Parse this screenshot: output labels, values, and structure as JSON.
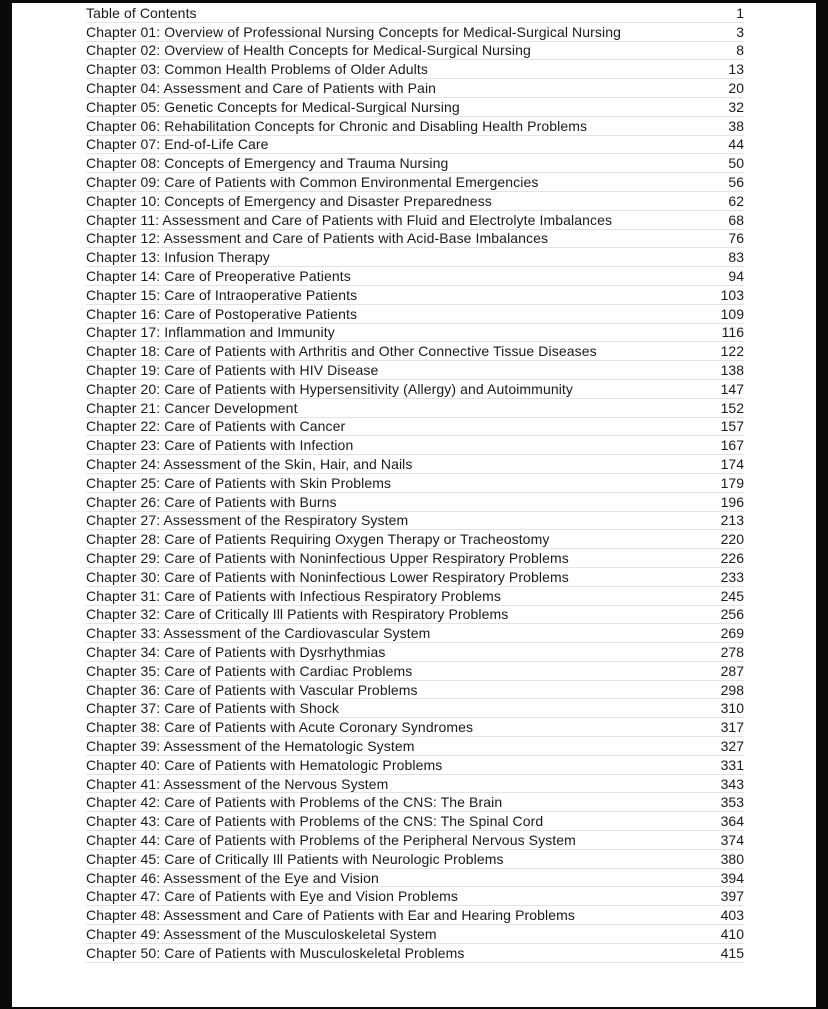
{
  "page": {
    "frame_color": "#0a0a0a",
    "paper_color": "#ffffff",
    "text_color": "#1a1a1a",
    "separator_color": "#e3e3e3"
  },
  "toc": {
    "entries": [
      {
        "label": "Table of Contents",
        "page": "1"
      },
      {
        "label": "Chapter 01: Overview of Professional Nursing Concepts for Medical-Surgical Nursing",
        "page": "3"
      },
      {
        "label": "Chapter 02: Overview of Health Concepts for Medical-Surgical Nursing",
        "page": "8"
      },
      {
        "label": "Chapter 03: Common Health Problems of Older Adults",
        "page": "13"
      },
      {
        "label": "Chapter 04: Assessment and Care of Patients with Pain",
        "page": "20"
      },
      {
        "label": "Chapter 05: Genetic Concepts for Medical-Surgical Nursing",
        "page": "32"
      },
      {
        "label": "Chapter 06: Rehabilitation Concepts for Chronic and Disabling Health Problems",
        "page": "38"
      },
      {
        "label": "Chapter 07: End-of-Life Care",
        "page": "44"
      },
      {
        "label": "Chapter 08: Concepts of Emergency and Trauma Nursing",
        "page": "50"
      },
      {
        "label": "Chapter 09: Care of Patients with Common Environmental Emergencies",
        "page": "56"
      },
      {
        "label": "Chapter 10: Concepts of Emergency and Disaster Preparedness",
        "page": "62"
      },
      {
        "label": "Chapter 11: Assessment and Care of Patients with Fluid and Electrolyte Imbalances",
        "page": "68"
      },
      {
        "label": "Chapter 12: Assessment and Care of Patients with Acid-Base Imbalances",
        "page": "76"
      },
      {
        "label": "Chapter 13: Infusion Therapy",
        "page": "83"
      },
      {
        "label": "Chapter 14: Care of Preoperative Patients",
        "page": "94"
      },
      {
        "label": "Chapter 15: Care of Intraoperative Patients",
        "page": "103"
      },
      {
        "label": "Chapter 16: Care of Postoperative Patients",
        "page": "109"
      },
      {
        "label": "Chapter 17: Inflammation and Immunity",
        "page": "116"
      },
      {
        "label": "Chapter 18: Care of Patients with Arthritis and Other Connective Tissue Diseases",
        "page": "122"
      },
      {
        "label": "Chapter 19: Care of Patients with HIV Disease",
        "page": "138"
      },
      {
        "label": "Chapter 20: Care of Patients with Hypersensitivity (Allergy) and Autoimmunity",
        "page": "147"
      },
      {
        "label": "Chapter 21: Cancer Development",
        "page": "152"
      },
      {
        "label": "Chapter 22: Care of Patients with Cancer",
        "page": "157"
      },
      {
        "label": "Chapter 23: Care of Patients with Infection",
        "page": "167"
      },
      {
        "label": "Chapter 24: Assessment of the Skin, Hair, and Nails",
        "page": "174"
      },
      {
        "label": "Chapter 25: Care of Patients with Skin Problems",
        "page": "179"
      },
      {
        "label": "Chapter 26: Care of Patients with Burns",
        "page": "196"
      },
      {
        "label": "Chapter 27: Assessment of the Respiratory System",
        "page": "213"
      },
      {
        "label": "Chapter 28: Care of Patients Requiring Oxygen Therapy or Tracheostomy",
        "page": "220"
      },
      {
        "label": "Chapter 29: Care of Patients with Noninfectious Upper Respiratory Problems",
        "page": "226"
      },
      {
        "label": "Chapter 30: Care of Patients with Noninfectious Lower Respiratory Problems",
        "page": "233"
      },
      {
        "label": "Chapter 31: Care of Patients with Infectious Respiratory Problems",
        "page": "245"
      },
      {
        "label": "Chapter 32: Care of Critically Ill Patients with Respiratory Problems",
        "page": "256"
      },
      {
        "label": "Chapter 33: Assessment of the Cardiovascular System",
        "page": "269"
      },
      {
        "label": "Chapter 34: Care of Patients with Dysrhythmias",
        "page": "278"
      },
      {
        "label": "Chapter 35: Care of Patients with Cardiac Problems",
        "page": "287"
      },
      {
        "label": "Chapter 36: Care of Patients with Vascular Problems",
        "page": "298"
      },
      {
        "label": "Chapter 37: Care of Patients with Shock",
        "page": "310"
      },
      {
        "label": "Chapter 38: Care of Patients with Acute Coronary Syndromes",
        "page": "317"
      },
      {
        "label": "Chapter 39: Assessment of the Hematologic System",
        "page": "327"
      },
      {
        "label": "Chapter 40: Care of Patients with Hematologic Problems",
        "page": "331"
      },
      {
        "label": "Chapter 41: Assessment of the Nervous System",
        "page": "343"
      },
      {
        "label": "Chapter 42: Care of Patients with Problems of the CNS: The Brain",
        "page": "353"
      },
      {
        "label": "Chapter 43: Care of Patients with Problems of the CNS: The Spinal Cord",
        "page": "364"
      },
      {
        "label": "Chapter 44: Care of Patients with Problems of the Peripheral Nervous System",
        "page": "374"
      },
      {
        "label": "Chapter 45: Care of Critically Ill Patients with Neurologic Problems",
        "page": "380"
      },
      {
        "label": "Chapter 46: Assessment of the Eye and Vision",
        "page": "394"
      },
      {
        "label": "Chapter 47: Care of Patients with Eye and Vision Problems",
        "page": "397"
      },
      {
        "label": "Chapter 48: Assessment and Care of Patients with Ear and Hearing Problems",
        "page": "403"
      },
      {
        "label": "Chapter 49: Assessment of the Musculoskeletal System",
        "page": "410"
      },
      {
        "label": "Chapter 50: Care of Patients with Musculoskeletal Problems",
        "page": "415"
      }
    ]
  }
}
